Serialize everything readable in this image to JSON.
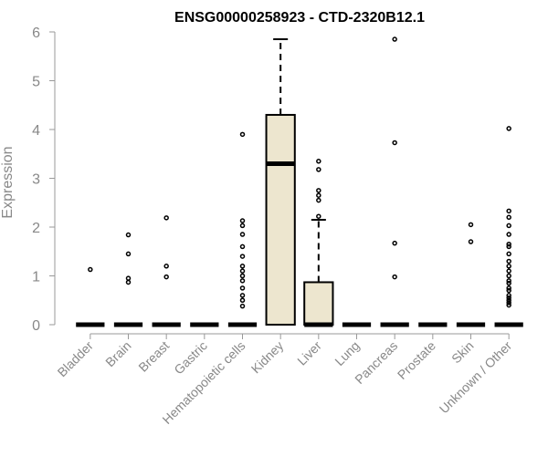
{
  "chart_data": {
    "type": "boxplot",
    "title": "ENSG00000258923 - CTD-2320B12.1",
    "xlabel": "",
    "ylabel": "Expression",
    "ylim": [
      0,
      6
    ],
    "yticks": [
      0,
      1,
      2,
      3,
      4,
      5,
      6
    ],
    "categories": [
      "Bladder",
      "Brain",
      "Breast",
      "Gastric",
      "Hematopoietic cells",
      "Kidney",
      "Liver",
      "Lung",
      "Pancreas",
      "Prostate",
      "Skin",
      "Unknown / Other"
    ],
    "boxes": [
      {
        "category": "Bladder",
        "min": 0,
        "q1": 0,
        "median": 0,
        "q3": 0,
        "max": 0,
        "outliers": [
          1.13
        ]
      },
      {
        "category": "Brain",
        "min": 0,
        "q1": 0,
        "median": 0,
        "q3": 0,
        "max": 0,
        "outliers": [
          1.84,
          1.45,
          0.95,
          0.87
        ]
      },
      {
        "category": "Breast",
        "min": 0,
        "q1": 0,
        "median": 0,
        "q3": 0,
        "max": 0,
        "outliers": [
          2.19,
          1.2,
          0.98
        ]
      },
      {
        "category": "Gastric",
        "min": 0,
        "q1": 0,
        "median": 0,
        "q3": 0,
        "max": 0,
        "outliers": []
      },
      {
        "category": "Hematopoietic cells",
        "min": 0,
        "q1": 0,
        "median": 0,
        "q3": 0,
        "max": 0,
        "outliers": [
          3.9,
          2.13,
          2.03,
          1.85,
          1.6,
          1.4,
          1.2,
          1.1,
          1.0,
          0.9,
          0.75,
          0.6,
          0.5,
          0.38
        ]
      },
      {
        "category": "Kidney",
        "min": 0,
        "q1": 0,
        "median": 3.3,
        "q3": 4.3,
        "max": 5.85,
        "outliers": []
      },
      {
        "category": "Liver",
        "min": 0,
        "q1": 0,
        "median": 0,
        "q3": 0.87,
        "max": 2.15,
        "outliers": [
          3.35,
          3.18,
          2.75,
          2.65,
          2.55,
          2.22
        ]
      },
      {
        "category": "Lung",
        "min": 0,
        "q1": 0,
        "median": 0,
        "q3": 0,
        "max": 0,
        "outliers": []
      },
      {
        "category": "Pancreas",
        "min": 0,
        "q1": 0,
        "median": 0,
        "q3": 0,
        "max": 0,
        "outliers": [
          5.85,
          3.73,
          1.67,
          0.98
        ]
      },
      {
        "category": "Prostate",
        "min": 0,
        "q1": 0,
        "median": 0,
        "q3": 0,
        "max": 0,
        "outliers": []
      },
      {
        "category": "Skin",
        "min": 0,
        "q1": 0,
        "median": 0,
        "q3": 0,
        "max": 0,
        "outliers": [
          2.05,
          1.7
        ]
      },
      {
        "category": "Unknown / Other",
        "min": 0,
        "q1": 0,
        "median": 0,
        "q3": 0,
        "max": 0,
        "outliers": [
          4.02,
          2.33,
          2.2,
          2.03,
          1.85,
          1.65,
          1.6,
          1.45,
          1.3,
          1.2,
          1.1,
          1.0,
          0.9,
          0.85,
          0.75,
          0.7,
          0.6,
          0.55,
          0.5,
          0.45,
          0.4
        ]
      }
    ],
    "colors": {
      "box_fill": "#ede6cf",
      "axis": "#999999",
      "text": "#888888"
    },
    "grid": false,
    "legend": "none"
  }
}
